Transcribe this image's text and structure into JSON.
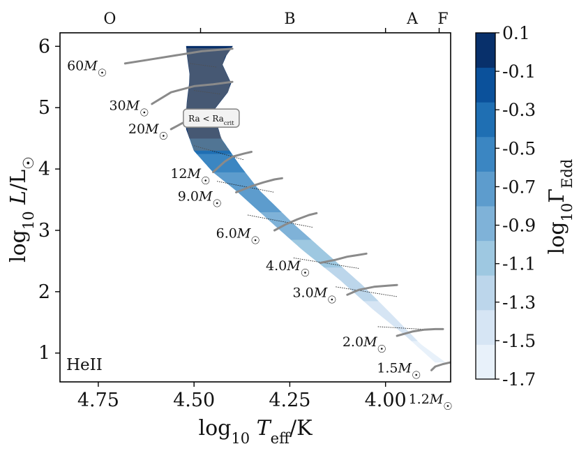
{
  "chart_data": {
    "type": "heatmap",
    "corner_label": "HeII",
    "xlabel": {
      "main": "log",
      "sub": "10",
      "var": "T",
      "varsub": "eff",
      "unit": "/K"
    },
    "ylabel": {
      "main": "log",
      "sub": "10",
      "var": "L",
      "unit": "/L",
      "sun": "☉"
    },
    "xlim": [
      4.85,
      3.83
    ],
    "ylim": [
      0.53,
      6.22
    ],
    "xticks": [
      {
        "v": 4.75,
        "label": "4.75"
      },
      {
        "v": 4.5,
        "label": "4.50"
      },
      {
        "v": 4.25,
        "label": "4.25"
      },
      {
        "v": 4.0,
        "label": "4.00"
      }
    ],
    "yticks": [
      {
        "v": 1,
        "label": "1"
      },
      {
        "v": 2,
        "label": "2"
      },
      {
        "v": 3,
        "label": "3"
      },
      {
        "v": 4,
        "label": "4"
      },
      {
        "v": 5,
        "label": "5"
      },
      {
        "v": 6,
        "label": "6"
      }
    ],
    "spectral_boundaries": [
      4.483,
      4.0,
      3.86
    ],
    "spectral_classes": [
      {
        "label": "O",
        "x": 4.72
      },
      {
        "label": "B",
        "x": 4.25
      },
      {
        "label": "A",
        "x": 3.93
      },
      {
        "label": "F",
        "x": 3.85
      }
    ],
    "colorbar": {
      "label": {
        "main": "log",
        "sub": "10",
        "var": "Γ",
        "varsub": "Edd"
      },
      "levels": [
        -1.7,
        -1.5,
        -1.3,
        -1.1,
        -0.9,
        -0.7,
        -0.5,
        -0.3,
        -0.1,
        0.1
      ],
      "tick_labels": [
        "-1.7",
        "-1.5",
        "-1.3",
        "-1.1",
        "-0.9",
        "-0.7",
        "-0.5",
        "-0.3",
        "-0.1",
        "0.1"
      ],
      "colors": [
        "#e8f1fa",
        "#d6e5f4",
        "#bcd6eb",
        "#9ec8e1",
        "#7fb2d8",
        "#5d9ccd",
        "#3b86c2",
        "#1f6fb3",
        "#0b519b",
        "#08306b"
      ]
    },
    "region_edges": {
      "left": [
        {
          "x": 3.865,
          "y": 0.82
        },
        {
          "x": 3.95,
          "y": 1.3
        },
        {
          "x": 4.03,
          "y": 1.7
        },
        {
          "x": 4.12,
          "y": 2.2
        },
        {
          "x": 4.22,
          "y": 2.7
        },
        {
          "x": 4.31,
          "y": 3.2
        },
        {
          "x": 4.39,
          "y": 3.65
        },
        {
          "x": 4.45,
          "y": 3.95
        },
        {
          "x": 4.5,
          "y": 4.3
        },
        {
          "x": 4.52,
          "y": 4.65
        },
        {
          "x": 4.52,
          "y": 5.0
        },
        {
          "x": 4.51,
          "y": 5.5
        },
        {
          "x": 4.52,
          "y": 5.95
        }
      ],
      "right": [
        {
          "x": 3.845,
          "y": 0.85
        },
        {
          "x": 3.91,
          "y": 1.15
        },
        {
          "x": 3.98,
          "y": 1.6
        },
        {
          "x": 4.06,
          "y": 2.1
        },
        {
          "x": 4.15,
          "y": 2.6
        },
        {
          "x": 4.24,
          "y": 3.1
        },
        {
          "x": 4.33,
          "y": 3.65
        },
        {
          "x": 4.38,
          "y": 4.05
        },
        {
          "x": 4.43,
          "y": 4.5
        },
        {
          "x": 4.45,
          "y": 4.95
        },
        {
          "x": 4.4,
          "y": 5.35
        },
        {
          "x": 4.43,
          "y": 5.75
        },
        {
          "x": 4.4,
          "y": 5.97
        }
      ]
    },
    "bands": [
      {
        "level": -1.7,
        "y0": 0.85,
        "y1": 1.2
      },
      {
        "level": -1.5,
        "y0": 1.2,
        "y1": 1.85
      },
      {
        "level": -1.3,
        "y0": 1.85,
        "y1": 2.4
      },
      {
        "level": -1.1,
        "y0": 2.4,
        "y1": 2.85
      },
      {
        "level": -0.9,
        "y0": 2.85,
        "y1": 3.3
      },
      {
        "level": -0.7,
        "y0": 3.3,
        "y1": 3.95
      },
      {
        "level": -0.5,
        "y0": 3.95,
        "y1": 4.25
      },
      {
        "level": -0.3,
        "y0": 4.25,
        "y1": 4.5
      },
      {
        "level": 0.1,
        "y0": 4.5,
        "y1": 6.0
      }
    ],
    "overlay_box": {
      "x_range": [
        4.52,
        4.4
      ],
      "y_range": [
        4.3,
        5.97
      ]
    },
    "annotation": {
      "text": "Ra < Ra",
      "sub": "crit",
      "x": 4.455,
      "y": 4.83
    },
    "tracks": [
      {
        "label": "60",
        "label_pos": [
          4.72,
          5.68
        ],
        "points": [
          [
            4.68,
            5.72
          ],
          [
            4.62,
            5.78
          ],
          [
            4.55,
            5.85
          ],
          [
            4.48,
            5.92
          ],
          [
            4.4,
            5.96
          ]
        ]
      },
      {
        "label": "30",
        "label_pos": [
          4.61,
          5.03
        ],
        "points": [
          [
            4.61,
            5.06
          ],
          [
            4.56,
            5.25
          ],
          [
            4.5,
            5.35
          ],
          [
            4.45,
            5.38
          ],
          [
            4.4,
            5.42
          ]
        ]
      },
      {
        "label": "20",
        "label_pos": [
          4.56,
          4.65
        ],
        "points": [
          [
            4.56,
            4.65
          ],
          [
            4.53,
            4.75
          ],
          [
            4.5,
            4.8
          ],
          [
            4.47,
            4.82
          ]
        ]
      },
      {
        "label": "12",
        "label_pos": [
          4.45,
          3.92
        ],
        "points": [
          [
            4.45,
            3.95
          ],
          [
            4.42,
            4.12
          ],
          [
            4.4,
            4.2
          ],
          [
            4.37,
            4.25
          ],
          [
            4.35,
            4.28
          ]
        ]
      },
      {
        "label": "9.0",
        "label_pos": [
          4.42,
          3.55
        ],
        "points": [
          [
            4.39,
            3.62
          ],
          [
            4.35,
            3.72
          ],
          [
            4.32,
            3.78
          ],
          [
            4.29,
            3.83
          ],
          [
            4.27,
            3.85
          ]
        ]
      },
      {
        "label": "6.0",
        "label_pos": [
          4.32,
          2.95
        ],
        "points": [
          [
            4.29,
            3.0
          ],
          [
            4.26,
            3.1
          ],
          [
            4.23,
            3.18
          ],
          [
            4.2,
            3.25
          ],
          [
            4.18,
            3.28
          ]
        ]
      },
      {
        "label": "4.0",
        "label_pos": [
          4.19,
          2.42
        ],
        "points": [
          [
            4.17,
            2.47
          ],
          [
            4.13,
            2.52
          ],
          [
            4.1,
            2.57
          ],
          [
            4.07,
            2.6
          ],
          [
            4.05,
            2.62
          ]
        ]
      },
      {
        "label": "3.0",
        "label_pos": [
          4.12,
          1.98
        ],
        "points": [
          [
            4.1,
            1.95
          ],
          [
            4.07,
            2.03
          ],
          [
            4.03,
            2.08
          ],
          [
            3.99,
            2.1
          ],
          [
            3.97,
            2.11
          ]
        ]
      },
      {
        "label": "2.0",
        "label_pos": [
          3.99,
          1.18
        ],
        "points": [
          [
            3.97,
            1.28
          ],
          [
            3.93,
            1.35
          ],
          [
            3.9,
            1.38
          ],
          [
            3.87,
            1.39
          ],
          [
            3.85,
            1.39
          ]
        ]
      },
      {
        "label": "1.5",
        "label_pos": [
          3.9,
          0.75
        ],
        "points": [
          [
            3.88,
            0.72
          ],
          [
            3.87,
            0.78
          ],
          [
            3.85,
            0.82
          ],
          [
            3.83,
            0.85
          ],
          [
            3.82,
            0.9
          ]
        ]
      }
    ],
    "outside_labels": [
      {
        "label": "1.2",
        "x": 3.94,
        "y": 0.35
      }
    ],
    "msun_symbol": "M",
    "sun_symbol": "☉",
    "hatch_lines": [
      [
        [
          4.51,
          5.72
        ],
        [
          4.44,
          5.66
        ]
      ],
      [
        [
          4.5,
          5.28
        ],
        [
          4.43,
          5.22
        ]
      ],
      [
        [
          4.5,
          4.38
        ],
        [
          4.37,
          4.15
        ]
      ],
      [
        [
          4.44,
          3.8
        ],
        [
          4.29,
          3.62
        ]
      ],
      [
        [
          4.36,
          3.25
        ],
        [
          4.19,
          3.05
        ]
      ],
      [
        [
          4.24,
          2.55
        ],
        [
          4.07,
          2.38
        ]
      ],
      [
        [
          4.13,
          2.08
        ],
        [
          3.97,
          1.92
        ]
      ],
      [
        [
          4.02,
          1.43
        ],
        [
          3.88,
          1.38
        ]
      ]
    ]
  }
}
